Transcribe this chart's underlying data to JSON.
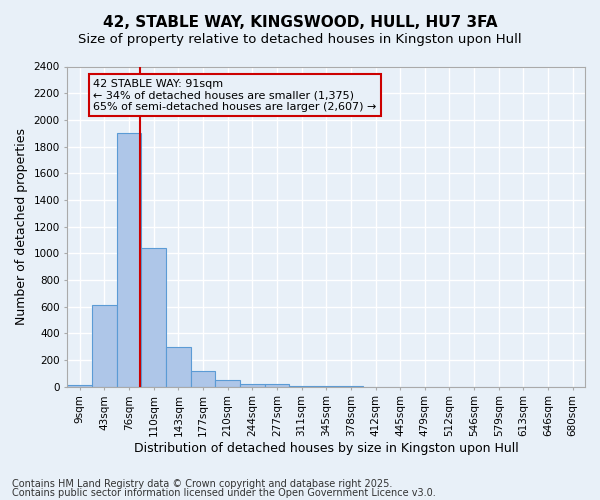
{
  "title": "42, STABLE WAY, KINGSWOOD, HULL, HU7 3FA",
  "subtitle": "Size of property relative to detached houses in Kingston upon Hull",
  "xlabel": "Distribution of detached houses by size in Kingston upon Hull",
  "ylabel": "Number of detached properties",
  "bin_labels": [
    "9sqm",
    "43sqm",
    "76sqm",
    "110sqm",
    "143sqm",
    "177sqm",
    "210sqm",
    "244sqm",
    "277sqm",
    "311sqm",
    "345sqm",
    "378sqm",
    "412sqm",
    "445sqm",
    "479sqm",
    "512sqm",
    "546sqm",
    "579sqm",
    "613sqm",
    "646sqm",
    "680sqm"
  ],
  "bar_values": [
    10,
    610,
    1900,
    1040,
    295,
    120,
    50,
    20,
    20,
    5,
    2,
    2,
    1,
    0,
    0,
    0,
    0,
    0,
    0,
    0,
    0
  ],
  "bar_color": "#aec6e8",
  "bar_edge_color": "#5b9bd5",
  "background_color": "#e8f0f8",
  "grid_color": "#ffffff",
  "property_line_x": 2.45,
  "property_line_color": "#cc0000",
  "annotation_line1": "42 STABLE WAY: 91sqm",
  "annotation_line2": "← 34% of detached houses are smaller (1,375)",
  "annotation_line3": "65% of semi-detached houses are larger (2,607) →",
  "annotation_box_color": "#cc0000",
  "ylim": [
    0,
    2400
  ],
  "yticks": [
    0,
    200,
    400,
    600,
    800,
    1000,
    1200,
    1400,
    1600,
    1800,
    2000,
    2200,
    2400
  ],
  "footnote1": "Contains HM Land Registry data © Crown copyright and database right 2025.",
  "footnote2": "Contains public sector information licensed under the Open Government Licence v3.0.",
  "title_fontsize": 11,
  "subtitle_fontsize": 9.5,
  "xlabel_fontsize": 9,
  "ylabel_fontsize": 9,
  "tick_fontsize": 7.5,
  "annotation_fontsize": 8,
  "footnote_fontsize": 7
}
